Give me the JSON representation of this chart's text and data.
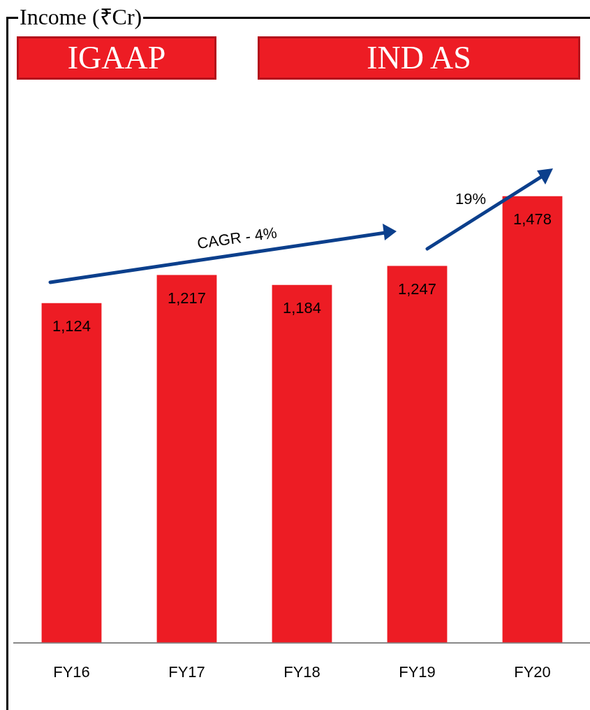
{
  "chart_data": {
    "type": "bar",
    "title": "Income (₹Cr)",
    "categories": [
      "FY16",
      "FY17",
      "FY18",
      "FY19",
      "FY20"
    ],
    "values": [
      1124,
      1217,
      1184,
      1247,
      1478
    ],
    "color": "#ed1c24",
    "value_labels": [
      "1,124",
      "1,217",
      "1,184",
      "1,247",
      "1,478"
    ],
    "tick_labels": "x",
    "grid": false,
    "legend": false,
    "annotations": [
      "IGAAP",
      "IND AS",
      "CAGR - 4%",
      "19%"
    ]
  }
}
